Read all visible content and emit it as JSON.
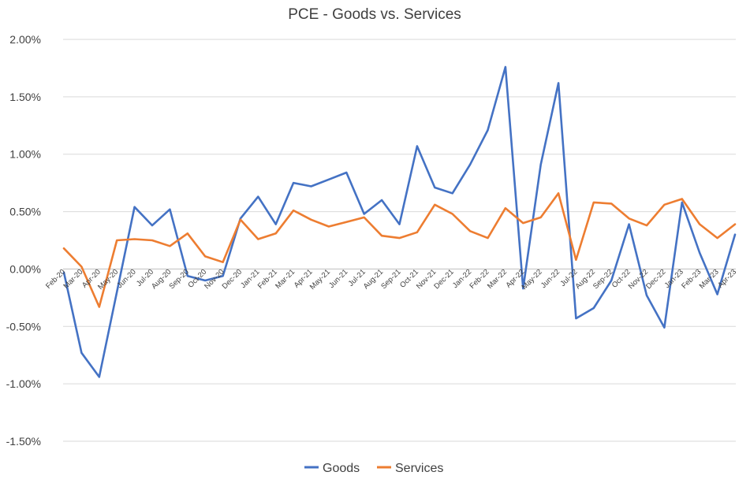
{
  "chart_data": {
    "type": "line",
    "title": "PCE - Goods vs. Services",
    "xlabel": "",
    "ylabel": "",
    "ylim": [
      -1.5,
      2.0
    ],
    "y_ticks": [
      2.0,
      1.5,
      1.0,
      0.5,
      0.0,
      -0.5,
      -1.0,
      -1.5
    ],
    "y_tick_labels": [
      "2.00%",
      "1.50%",
      "1.00%",
      "0.50%",
      "0.00%",
      "-0.50%",
      "-1.00%",
      "-1.50%"
    ],
    "grid": true,
    "legend_position": "bottom",
    "categories": [
      "Feb-20",
      "Mar-20",
      "Apr-20",
      "May-20",
      "Jun-20",
      "Jul-20",
      "Aug-20",
      "Sep-20",
      "Oct-20",
      "Nov-20",
      "Dec-20",
      "Jan-21",
      "Feb-21",
      "Mar-21",
      "Apr-21",
      "May-21",
      "Jun-21",
      "Jul-21",
      "Aug-21",
      "Sep-21",
      "Oct-21",
      "Nov-21",
      "Dec-21",
      "Jan-22",
      "Feb-22",
      "Mar-22",
      "Apr-22",
      "May-22",
      "Jun-22",
      "Jul-22",
      "Aug-22",
      "Sep-22",
      "Oct-22",
      "Nov-22",
      "Dec-22",
      "Jan-23",
      "Feb-23",
      "Mar-23",
      "Apr-23"
    ],
    "series": [
      {
        "name": "Goods",
        "color": "#4472c4",
        "values": [
          -0.03,
          -0.73,
          -0.94,
          -0.2,
          0.54,
          0.38,
          0.52,
          -0.06,
          -0.1,
          -0.06,
          0.44,
          0.63,
          0.39,
          0.75,
          0.72,
          0.78,
          0.84,
          0.48,
          0.6,
          0.39,
          1.07,
          0.71,
          0.66,
          0.91,
          1.21,
          1.76,
          -0.17,
          0.91,
          1.62,
          -0.43,
          -0.34,
          -0.1,
          0.39,
          -0.23,
          -0.51,
          0.58,
          0.14,
          -0.22,
          0.3
        ]
      },
      {
        "name": "Services",
        "color": "#ed7d31",
        "values": [
          0.18,
          0.02,
          -0.33,
          0.25,
          0.26,
          0.25,
          0.2,
          0.31,
          0.11,
          0.06,
          0.43,
          0.26,
          0.31,
          0.51,
          0.43,
          0.37,
          0.41,
          0.45,
          0.29,
          0.27,
          0.32,
          0.56,
          0.48,
          0.33,
          0.27,
          0.53,
          0.4,
          0.45,
          0.66,
          0.08,
          0.58,
          0.57,
          0.44,
          0.38,
          0.56,
          0.61,
          0.39,
          0.27,
          0.39
        ]
      }
    ]
  }
}
